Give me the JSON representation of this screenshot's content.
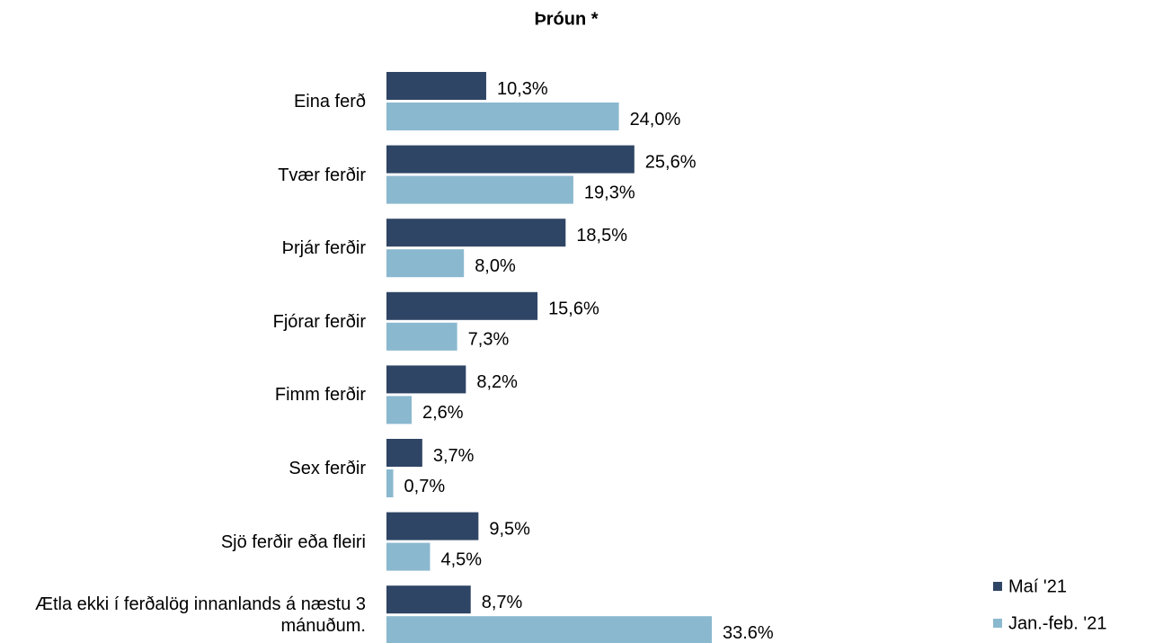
{
  "chart_data": {
    "type": "bar",
    "orientation": "horizontal",
    "title": "Þróun *",
    "categories": [
      "Eina ferð",
      "Tvær ferðir",
      "Þrjár ferðir",
      "Fjórar ferðir",
      "Fimm ferðir",
      "Sex ferðir",
      "Sjö ferðir eða fleiri",
      "Ætla ekki í ferðalög innanlands á næstu 3 mánuðum."
    ],
    "series": [
      {
        "name": "Maí '21",
        "color": "#2f4565",
        "values": [
          10.3,
          25.6,
          18.5,
          15.6,
          8.2,
          3.7,
          9.5,
          8.7
        ],
        "value_labels": [
          "10,3%",
          "25,6%",
          "18,5%",
          "15,6%",
          "8,2%",
          "3,7%",
          "9,5%",
          "8,7%"
        ]
      },
      {
        "name": "Jan.-feb. '21",
        "color": "#8ab8cf",
        "values": [
          24.0,
          19.3,
          8.0,
          7.3,
          2.6,
          0.7,
          4.5,
          33.6
        ],
        "value_labels": [
          "24,0%",
          "19,3%",
          "8,0%",
          "7,3%",
          "2,6%",
          "0,7%",
          "4,5%",
          "33.6%"
        ]
      }
    ],
    "legend": "bottom-right"
  }
}
